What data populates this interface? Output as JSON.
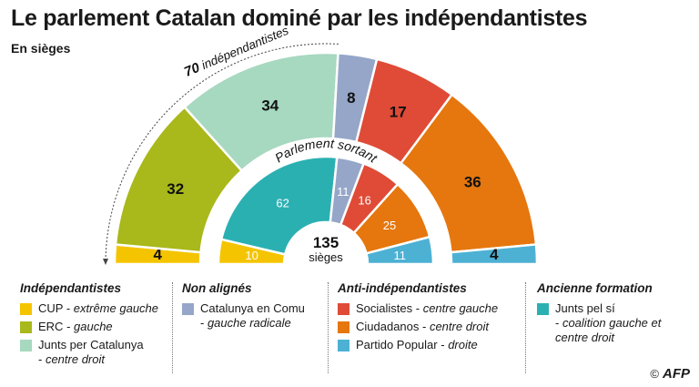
{
  "title": "Le parlement Catalan dominé par les indépendantistes",
  "subtitle": "En sièges",
  "annotations": {
    "indep_count": "70",
    "indep_word": " indépendantistes",
    "inner_ring_label": "Parlement sortant",
    "total_value": "135",
    "total_unit": "sièges"
  },
  "credit": {
    "symbol": "©",
    "logo": "AFP"
  },
  "colors": {
    "cup": "#f5c400",
    "erc": "#a9b81a",
    "junts": "#a7d8c0",
    "comu": "#95a6c8",
    "psc": "#df4b36",
    "cs": "#e5770e",
    "pp": "#4db1d4",
    "jxsi": "#2bb0b2"
  },
  "chart_data": [
    {
      "type": "pie",
      "subtype": "half-donut",
      "ring": "outer",
      "categories": [
        "CUP",
        "ERC",
        "Junts per Catalunya",
        "Catalunya en Comu",
        "Socialistes",
        "Ciudadanos",
        "Partido Popular"
      ],
      "values": [
        4,
        32,
        34,
        8,
        17,
        36,
        4
      ],
      "total": 135
    },
    {
      "type": "pie",
      "subtype": "half-donut",
      "ring": "inner",
      "title": "Parlement sortant",
      "categories": [
        "CUP",
        "Junts pel sí",
        "Catalunya en Comu",
        "Socialistes",
        "Ciudadanos",
        "Partido Popular"
      ],
      "values": [
        10,
        62,
        11,
        16,
        25,
        11
      ],
      "total": 135
    }
  ],
  "legend": [
    {
      "heading": "Indépendantistes",
      "items": [
        {
          "key": "cup",
          "name": "CUP",
          "desc": "extrême gauche"
        },
        {
          "key": "erc",
          "name": "ERC",
          "desc": "gauche"
        },
        {
          "key": "junts",
          "name": "Junts per Catalunya",
          "desc": "centre droit"
        }
      ]
    },
    {
      "heading": "Non alignés",
      "items": [
        {
          "key": "comu",
          "name": "Catalunya en Comu",
          "desc": "gauche radicale"
        }
      ]
    },
    {
      "heading": "Anti-indépendantistes",
      "items": [
        {
          "key": "psc",
          "name": "Socialistes",
          "desc": "centre gauche"
        },
        {
          "key": "cs",
          "name": "Ciudadanos",
          "desc": "centre droit"
        },
        {
          "key": "pp",
          "name": "Partido Popular",
          "desc": "droite"
        }
      ]
    },
    {
      "heading": "Ancienne formation",
      "items": [
        {
          "key": "jxsi",
          "name": "Junts pel sí",
          "desc": "coalition gauche et centre droit"
        }
      ]
    }
  ]
}
